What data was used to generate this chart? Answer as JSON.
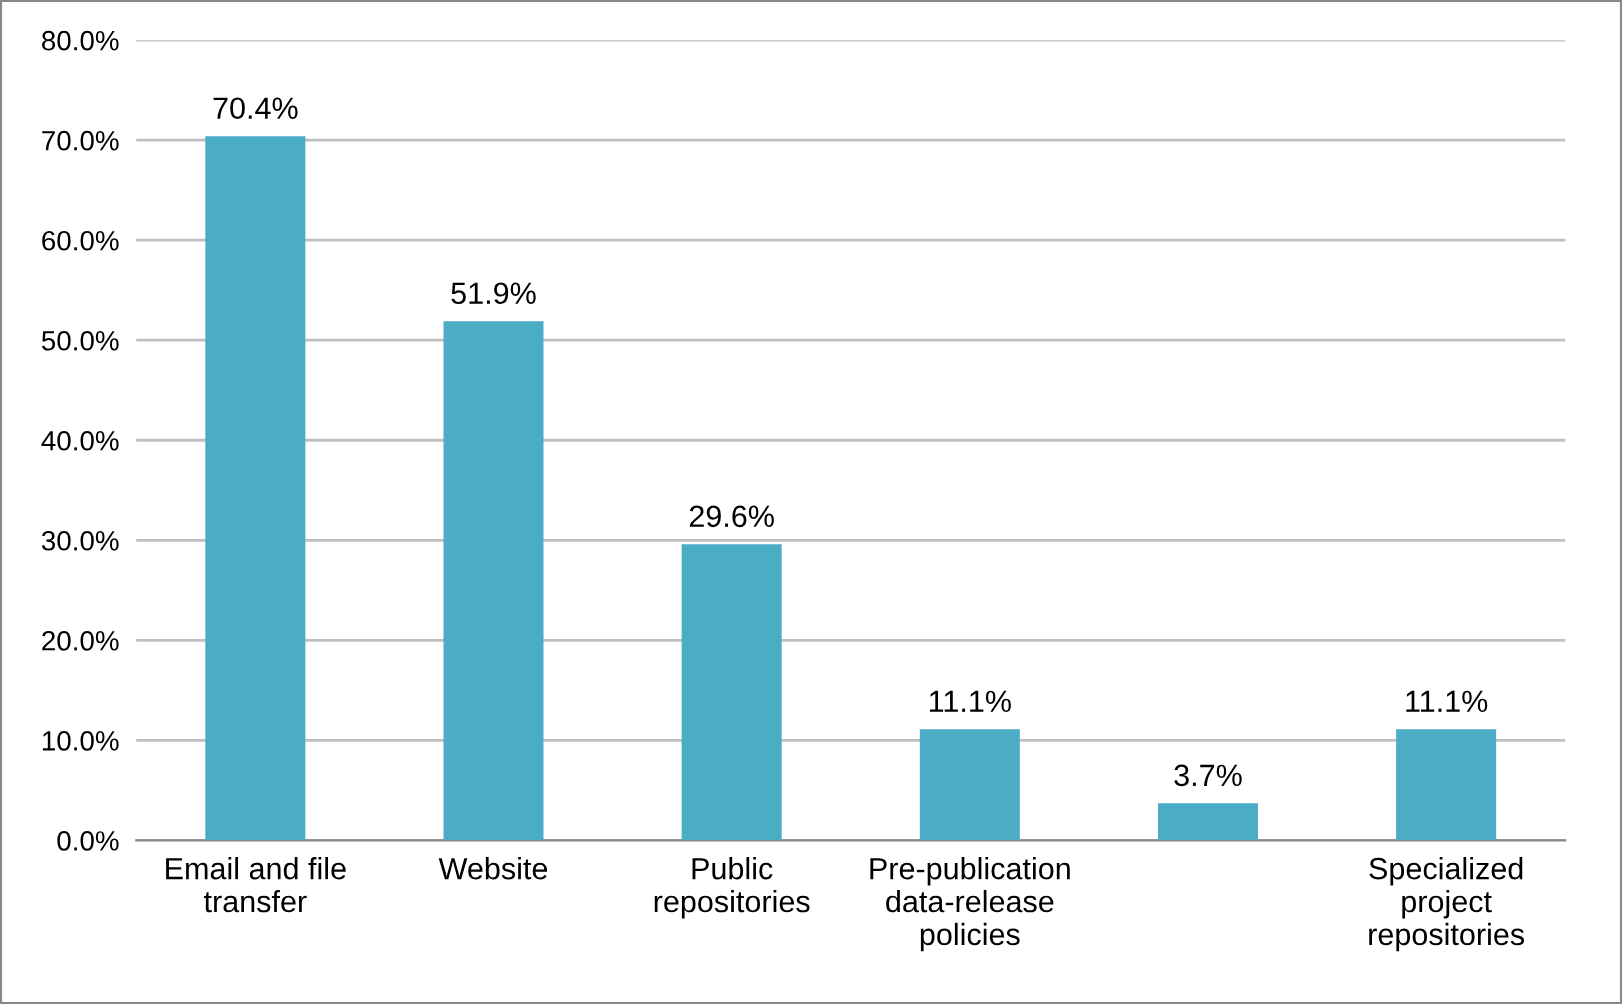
{
  "chart_data": {
    "type": "bar",
    "categories": [
      "Email and file\ntransfer",
      "Website",
      "Public\nrepositories",
      "Pre-publication\ndata-release\npolicies",
      null,
      "Specialized\nproject\nrepositories"
    ],
    "values": [
      70.4,
      51.9,
      29.6,
      11.1,
      3.7,
      11.1
    ],
    "value_labels": [
      "70.4%",
      "51.9%",
      "29.6%",
      "11.1%",
      "3.7%",
      "11.1%"
    ],
    "color": "#4bacc6",
    "ylim": [
      0,
      80
    ],
    "yticks": [
      {
        "value": 0,
        "label": "0.0%"
      },
      {
        "value": 10,
        "label": "10.0%"
      },
      {
        "value": 20,
        "label": "20.0%"
      },
      {
        "value": 30,
        "label": "30.0%"
      },
      {
        "value": 40,
        "label": "40.0%"
      },
      {
        "value": 50,
        "label": "50.0%"
      },
      {
        "value": 60,
        "label": "60.0%"
      },
      {
        "value": 70,
        "label": "70.0%"
      },
      {
        "value": 80,
        "label": "80.0%"
      }
    ],
    "grid": "y",
    "legend": false
  }
}
